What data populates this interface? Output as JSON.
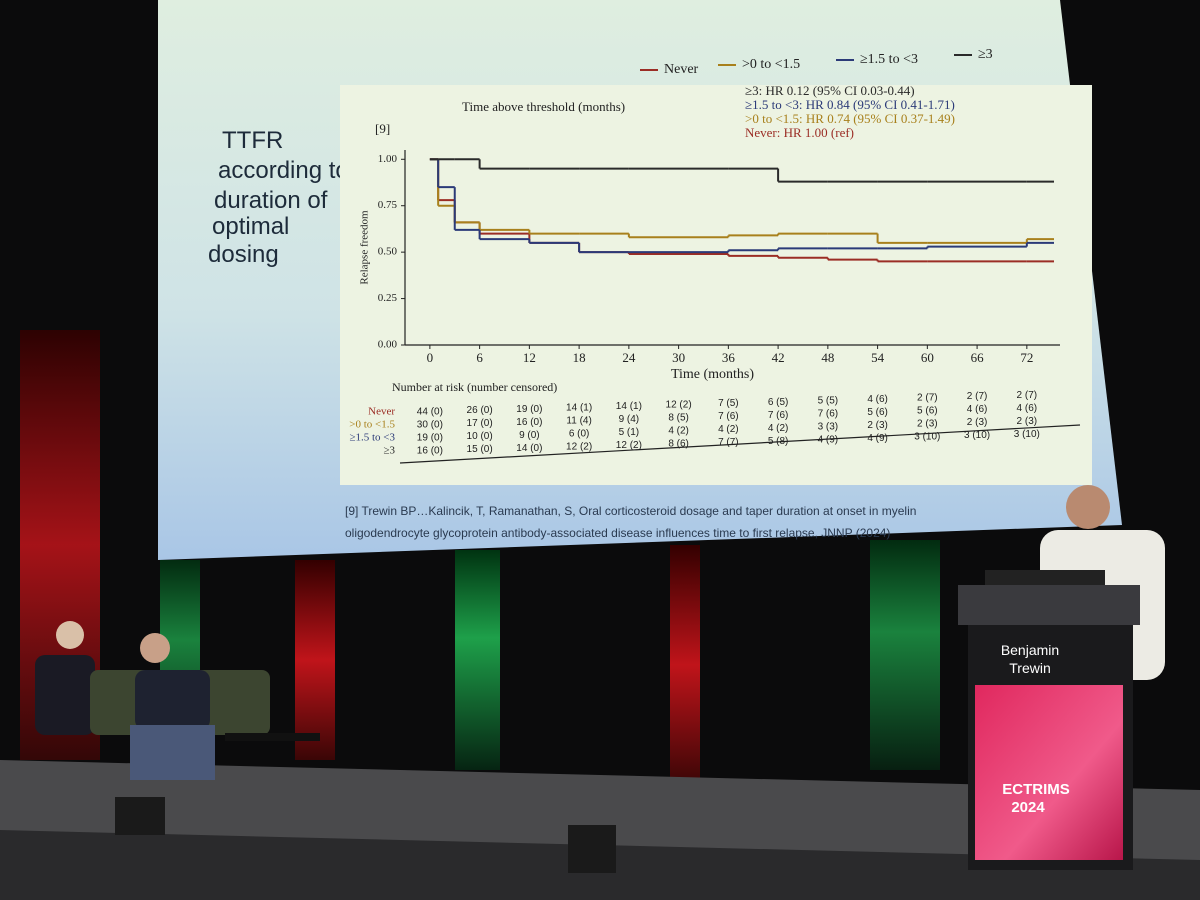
{
  "slide": {
    "title": "TTFR according to duration of optimal dosing",
    "ref": "[9]",
    "citation": "[9] Trewin BP…Kalincik, T, Ramanathan, S, Oral corticosteroid dosage and taper duration at onset in myelin oligodendrocyte glycoprotein antibody-associated disease influences time to first relapse, JNNP (2024)"
  },
  "chart_data": {
    "type": "step",
    "legend_title": "Time above threshold (months)",
    "x_label": "Time (months)",
    "y_label": "Relapse freedom",
    "x": [
      0,
      1,
      3,
      6,
      12,
      18,
      24,
      36,
      42,
      48,
      54,
      60,
      72
    ],
    "series": [
      {
        "name": "Never",
        "color": "#9b2d25",
        "values": [
          1,
          0.78,
          0.66,
          0.6,
          0.55,
          0.5,
          0.49,
          0.48,
          0.47,
          0.46,
          0.45,
          0.45,
          0.45
        ]
      },
      {
        "name": ">0 to <1.5",
        "color": "#a8801c",
        "values": [
          1,
          0.75,
          0.66,
          0.62,
          0.6,
          0.6,
          0.58,
          0.59,
          0.6,
          0.6,
          0.55,
          0.55,
          0.57
        ]
      },
      {
        "name": "≥1.5 to <3",
        "color": "#2b3a78",
        "values": [
          1,
          0.85,
          0.62,
          0.57,
          0.55,
          0.5,
          0.5,
          0.51,
          0.52,
          0.52,
          0.52,
          0.53,
          0.55
        ]
      },
      {
        "name": "≥3",
        "color": "#2a2a2a",
        "values": [
          1,
          1,
          1,
          0.95,
          0.95,
          0.95,
          0.95,
          0.95,
          0.88,
          0.88,
          0.88,
          0.88,
          0.88
        ]
      }
    ],
    "annotations": [
      "≥3: HR 0.12 (95% CI 0.03-0.44)",
      "≥1.5 to <3: HR 0.84 (95% CI 0.41-1.71)",
      ">0 to <1.5: HR 0.74 (95% CI 0.37-1.49)",
      "Never: HR 1.00 (ref)"
    ],
    "xlim": [
      -3,
      76
    ],
    "ylim": [
      0,
      1.05
    ],
    "xticks": [
      0,
      6,
      12,
      18,
      24,
      30,
      36,
      42,
      48,
      54,
      60,
      66,
      72
    ],
    "yticks": [
      {
        "value": 0,
        "label": "0.00"
      },
      {
        "value": 0.25,
        "label": "0.25"
      },
      {
        "value": 0.5,
        "label": "0.50"
      },
      {
        "value": 0.75,
        "label": "0.75"
      },
      {
        "value": 1,
        "label": "1.00"
      }
    ]
  },
  "risk_table": {
    "title": "Number at risk (number censored)",
    "row_labels": [
      "Never",
      ">0 to <1.5",
      "≥1.5 to <3",
      "≥3"
    ],
    "rows": [
      [
        "44 (0)",
        "26 (0)",
        "19 (0)",
        "14 (1)",
        "14 (1)",
        "12 (2)",
        "7 (5)",
        "6 (5)",
        "5 (5)",
        "4 (6)",
        "2 (7)",
        "2 (7)",
        "2 (7)"
      ],
      [
        "30 (0)",
        "17 (0)",
        "16 (0)",
        "11 (4)",
        "9 (4)",
        "8 (5)",
        "7 (6)",
        "7 (6)",
        "7 (6)",
        "5 (6)",
        "5 (6)",
        "4 (6)",
        "4 (6)"
      ],
      [
        "19 (0)",
        "10 (0)",
        "9 (0)",
        "6 (0)",
        "5 (1)",
        "4 (2)",
        "4 (2)",
        "4 (2)",
        "3 (3)",
        "2 (3)",
        "2 (3)",
        "2 (3)",
        "2 (3)"
      ],
      [
        "16 (0)",
        "15 (0)",
        "14 (0)",
        "12 (2)",
        "12 (2)",
        "8 (6)",
        "7 (7)",
        "5 (8)",
        "4 (9)",
        "4 (9)",
        "3 (10)",
        "3 (10)",
        "3 (10)"
      ]
    ]
  },
  "podium": {
    "name": "Benjamin Trewin",
    "logo": "ECTRIMS 2024"
  }
}
